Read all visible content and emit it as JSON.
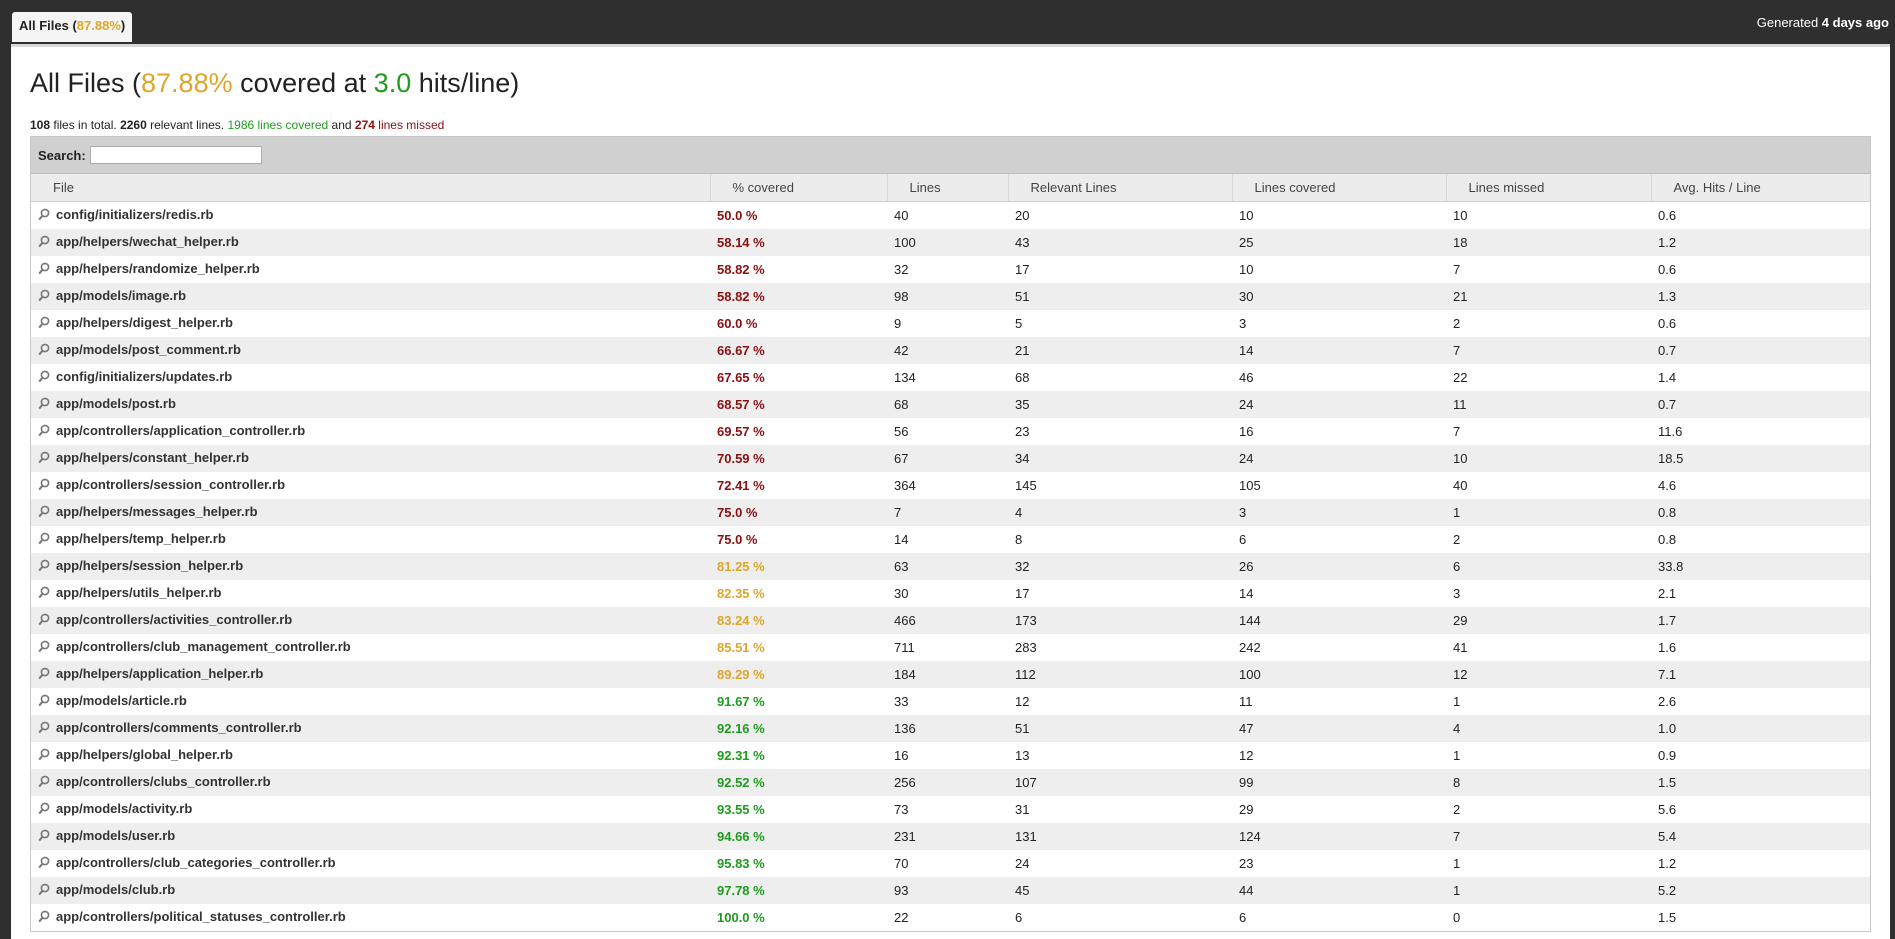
{
  "tab": {
    "label_prefix": "All Files (",
    "percent": "87.88%",
    "label_suffix": ")"
  },
  "generated": {
    "prefix": "Generated ",
    "age": "4 days ago"
  },
  "title": {
    "prefix": "All Files (",
    "percent": "87.88%",
    "middle": " covered at ",
    "hits": "3.0",
    "suffix": " hits/line)"
  },
  "summary": {
    "files": "108",
    "files_text": " files in total. ",
    "relevant": "2260",
    "relevant_text": " relevant lines. ",
    "covered": "1986 lines covered",
    "and_text": " and ",
    "missed_count": "274",
    "missed_text": " lines missed"
  },
  "search": {
    "label": "Search:",
    "value": "",
    "placeholder": ""
  },
  "columns": [
    "File",
    "% covered",
    "Lines",
    "Relevant Lines",
    "Lines covered",
    "Lines missed",
    "Avg. Hits / Line"
  ],
  "rows": [
    {
      "file": "config/initializers/redis.rb",
      "pct": "50.0 %",
      "level": "red",
      "lines": "40",
      "relevant": "20",
      "covered": "10",
      "missed": "10",
      "avg": "0.6"
    },
    {
      "file": "app/helpers/wechat_helper.rb",
      "pct": "58.14 %",
      "level": "red",
      "lines": "100",
      "relevant": "43",
      "covered": "25",
      "missed": "18",
      "avg": "1.2"
    },
    {
      "file": "app/helpers/randomize_helper.rb",
      "pct": "58.82 %",
      "level": "red",
      "lines": "32",
      "relevant": "17",
      "covered": "10",
      "missed": "7",
      "avg": "0.6"
    },
    {
      "file": "app/models/image.rb",
      "pct": "58.82 %",
      "level": "red",
      "lines": "98",
      "relevant": "51",
      "covered": "30",
      "missed": "21",
      "avg": "1.3"
    },
    {
      "file": "app/helpers/digest_helper.rb",
      "pct": "60.0 %",
      "level": "red",
      "lines": "9",
      "relevant": "5",
      "covered": "3",
      "missed": "2",
      "avg": "0.6"
    },
    {
      "file": "app/models/post_comment.rb",
      "pct": "66.67 %",
      "level": "red",
      "lines": "42",
      "relevant": "21",
      "covered": "14",
      "missed": "7",
      "avg": "0.7"
    },
    {
      "file": "config/initializers/updates.rb",
      "pct": "67.65 %",
      "level": "red",
      "lines": "134",
      "relevant": "68",
      "covered": "46",
      "missed": "22",
      "avg": "1.4"
    },
    {
      "file": "app/models/post.rb",
      "pct": "68.57 %",
      "level": "red",
      "lines": "68",
      "relevant": "35",
      "covered": "24",
      "missed": "11",
      "avg": "0.7"
    },
    {
      "file": "app/controllers/application_controller.rb",
      "pct": "69.57 %",
      "level": "red",
      "lines": "56",
      "relevant": "23",
      "covered": "16",
      "missed": "7",
      "avg": "11.6"
    },
    {
      "file": "app/helpers/constant_helper.rb",
      "pct": "70.59 %",
      "level": "red",
      "lines": "67",
      "relevant": "34",
      "covered": "24",
      "missed": "10",
      "avg": "18.5"
    },
    {
      "file": "app/controllers/session_controller.rb",
      "pct": "72.41 %",
      "level": "red",
      "lines": "364",
      "relevant": "145",
      "covered": "105",
      "missed": "40",
      "avg": "4.6"
    },
    {
      "file": "app/helpers/messages_helper.rb",
      "pct": "75.0 %",
      "level": "red",
      "lines": "7",
      "relevant": "4",
      "covered": "3",
      "missed": "1",
      "avg": "0.8"
    },
    {
      "file": "app/helpers/temp_helper.rb",
      "pct": "75.0 %",
      "level": "red",
      "lines": "14",
      "relevant": "8",
      "covered": "6",
      "missed": "2",
      "avg": "0.8"
    },
    {
      "file": "app/helpers/session_helper.rb",
      "pct": "81.25 %",
      "level": "gold",
      "lines": "63",
      "relevant": "32",
      "covered": "26",
      "missed": "6",
      "avg": "33.8"
    },
    {
      "file": "app/helpers/utils_helper.rb",
      "pct": "82.35 %",
      "level": "gold",
      "lines": "30",
      "relevant": "17",
      "covered": "14",
      "missed": "3",
      "avg": "2.1"
    },
    {
      "file": "app/controllers/activities_controller.rb",
      "pct": "83.24 %",
      "level": "gold",
      "lines": "466",
      "relevant": "173",
      "covered": "144",
      "missed": "29",
      "avg": "1.7"
    },
    {
      "file": "app/controllers/club_management_controller.rb",
      "pct": "85.51 %",
      "level": "gold",
      "lines": "711",
      "relevant": "283",
      "covered": "242",
      "missed": "41",
      "avg": "1.6"
    },
    {
      "file": "app/helpers/application_helper.rb",
      "pct": "89.29 %",
      "level": "gold",
      "lines": "184",
      "relevant": "112",
      "covered": "100",
      "missed": "12",
      "avg": "7.1"
    },
    {
      "file": "app/models/article.rb",
      "pct": "91.67 %",
      "level": "green",
      "lines": "33",
      "relevant": "12",
      "covered": "11",
      "missed": "1",
      "avg": "2.6"
    },
    {
      "file": "app/controllers/comments_controller.rb",
      "pct": "92.16 %",
      "level": "green",
      "lines": "136",
      "relevant": "51",
      "covered": "47",
      "missed": "4",
      "avg": "1.0"
    },
    {
      "file": "app/helpers/global_helper.rb",
      "pct": "92.31 %",
      "level": "green",
      "lines": "16",
      "relevant": "13",
      "covered": "12",
      "missed": "1",
      "avg": "0.9"
    },
    {
      "file": "app/controllers/clubs_controller.rb",
      "pct": "92.52 %",
      "level": "green",
      "lines": "256",
      "relevant": "107",
      "covered": "99",
      "missed": "8",
      "avg": "1.5"
    },
    {
      "file": "app/models/activity.rb",
      "pct": "93.55 %",
      "level": "green",
      "lines": "73",
      "relevant": "31",
      "covered": "29",
      "missed": "2",
      "avg": "5.6"
    },
    {
      "file": "app/models/user.rb",
      "pct": "94.66 %",
      "level": "green",
      "lines": "231",
      "relevant": "131",
      "covered": "124",
      "missed": "7",
      "avg": "5.4"
    },
    {
      "file": "app/controllers/club_categories_controller.rb",
      "pct": "95.83 %",
      "level": "green",
      "lines": "70",
      "relevant": "24",
      "covered": "23",
      "missed": "1",
      "avg": "1.2"
    },
    {
      "file": "app/models/club.rb",
      "pct": "97.78 %",
      "level": "green",
      "lines": "93",
      "relevant": "45",
      "covered": "44",
      "missed": "1",
      "avg": "5.2"
    },
    {
      "file": "app/controllers/political_statuses_controller.rb",
      "pct": "100.0 %",
      "level": "green",
      "lines": "22",
      "relevant": "6",
      "covered": "6",
      "missed": "0",
      "avg": "1.5"
    }
  ],
  "colors": {
    "red": "#8b0f0f",
    "gold": "#dda62a",
    "green": "#1e9c1e",
    "topbar": "#2f2f2f"
  },
  "icons": {
    "row": "magnifier-icon"
  }
}
